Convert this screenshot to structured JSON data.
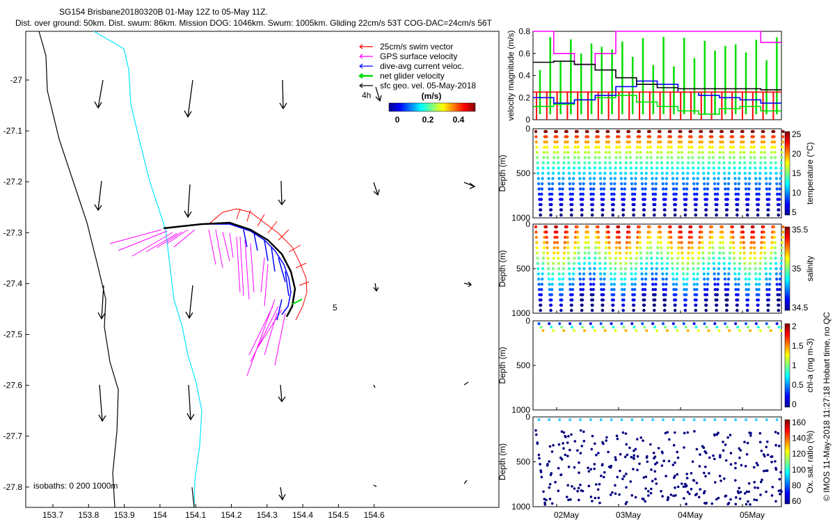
{
  "header": {
    "line1": "SG154 Brisbane20180320B 01-May 12Z to 05-May 11Z.",
    "line2": "Dist. over ground: 50km. Dist. swum: 86km. Mission DOG: 1046km. Swum: 1005km. Gliding 22cm/s 53T COG-DAC=24cm/s 56T"
  },
  "map": {
    "x_ticks": [
      "153.7",
      "153.8",
      "153.9",
      "154",
      "154.1",
      "154.2",
      "154.3",
      "154.4",
      "154.5",
      "154.6"
    ],
    "y_ticks": [
      "-27",
      "-27.1",
      "-27.2",
      "-27.3",
      "-27.4",
      "-27.5",
      "-27.6",
      "-27.7",
      "-27.8"
    ],
    "isobaths": "isobaths: 0   200  1000m",
    "label_4h": "4h",
    "label_5": "5",
    "legend": [
      {
        "label": "25cm/s swim vector",
        "color": "#ff0000"
      },
      {
        "label": "GPS surface velocity",
        "color": "#ff00ff"
      },
      {
        "label": "dive-avg current veloc.",
        "color": "#0000ff"
      },
      {
        "label": "net glider velocity",
        "color": "#00dd00"
      },
      {
        "label": "sfc geo. vel. 05-May-2018",
        "color": "#000000"
      }
    ],
    "colorbar": {
      "title": "(m/s)",
      "ticks": [
        "0",
        "0.2",
        "0.4"
      ]
    }
  },
  "chart_data": [
    {
      "type": "line",
      "title": "velocity magnitude",
      "ylabel": "velocity magnitude (m/s)",
      "ylim": [
        0,
        0.8
      ],
      "y_ticks": [
        "0",
        "0.2",
        "0.4",
        "0.6",
        "0.8"
      ],
      "x_ticks": [
        "02May",
        "03May",
        "04May",
        "05May"
      ],
      "series": [
        {
          "name": "net glider velocity",
          "color": "#00dd00",
          "values": [
            0.12,
            0.14,
            0.18,
            0.2,
            0.22,
            0.16,
            0.12,
            0.08,
            0.05,
            0.1,
            0.12,
            0.08
          ]
        },
        {
          "name": "dive-avg current",
          "color": "#0000ff",
          "values": [
            0.2,
            0.15,
            0.18,
            0.22,
            0.3,
            0.35,
            0.32,
            0.25,
            0.22,
            0.2,
            0.18,
            0.15
          ]
        },
        {
          "name": "GPS surface velocity",
          "color": "#ff00ff",
          "values": [
            0.8,
            0.6,
            0.5,
            0.6,
            0.8,
            0.8,
            0.8,
            0.8,
            0.8,
            0.8,
            0.8,
            0.7
          ]
        },
        {
          "name": "swim speed",
          "color": "#ff0000",
          "values": [
            0.25,
            0.25,
            0.25,
            0.25,
            0.25,
            0.25,
            0.25,
            0.25,
            0.25,
            0.25,
            0.25,
            0.25
          ]
        },
        {
          "name": "sfc geo. vel.",
          "color": "#000000",
          "values": [
            0.52,
            0.53,
            0.5,
            0.45,
            0.38,
            0.32,
            0.29,
            0.28,
            0.28,
            0.28,
            0.28,
            0.27
          ]
        }
      ]
    },
    {
      "type": "scatter",
      "ylabel": "Depth (m)",
      "clabel": "temperature (°C)",
      "ylim": [
        1000,
        0
      ],
      "y_ticks": [
        "0",
        "500",
        "1000"
      ],
      "c_ticks": [
        "25",
        "20",
        "15",
        "10",
        "5"
      ],
      "dives": 24
    },
    {
      "type": "scatter",
      "ylabel": "Depth (m)",
      "clabel": "salinity",
      "ylim": [
        1000,
        0
      ],
      "y_ticks": [
        "0",
        "500",
        "1000"
      ],
      "c_ticks": [
        "35.5",
        "35",
        "34.5"
      ],
      "dives": 24
    },
    {
      "type": "scatter",
      "ylabel": "Depth (m)",
      "clabel": "chl-a (mg m-3)",
      "ylim": [
        1000,
        0
      ],
      "y_ticks": [
        "0",
        "500",
        "1000"
      ],
      "c_ticks": [
        "2",
        "1.5",
        "1",
        "0.5",
        "0"
      ],
      "dives": 24
    },
    {
      "type": "scatter",
      "ylabel": "Depth (m)",
      "clabel": "Ox. sat. ratio (%)",
      "ylim": [
        1000,
        0
      ],
      "y_ticks": [
        "0",
        "500",
        "1000"
      ],
      "c_ticks": [
        "160",
        "140",
        "120",
        "100",
        "80",
        "60"
      ],
      "x_ticks": [
        "02May",
        "03May",
        "04May",
        "05May"
      ],
      "dives": 24
    }
  ],
  "credit": "© IMOS 11-May-2018 11:27:18 Hobart time, no QC"
}
